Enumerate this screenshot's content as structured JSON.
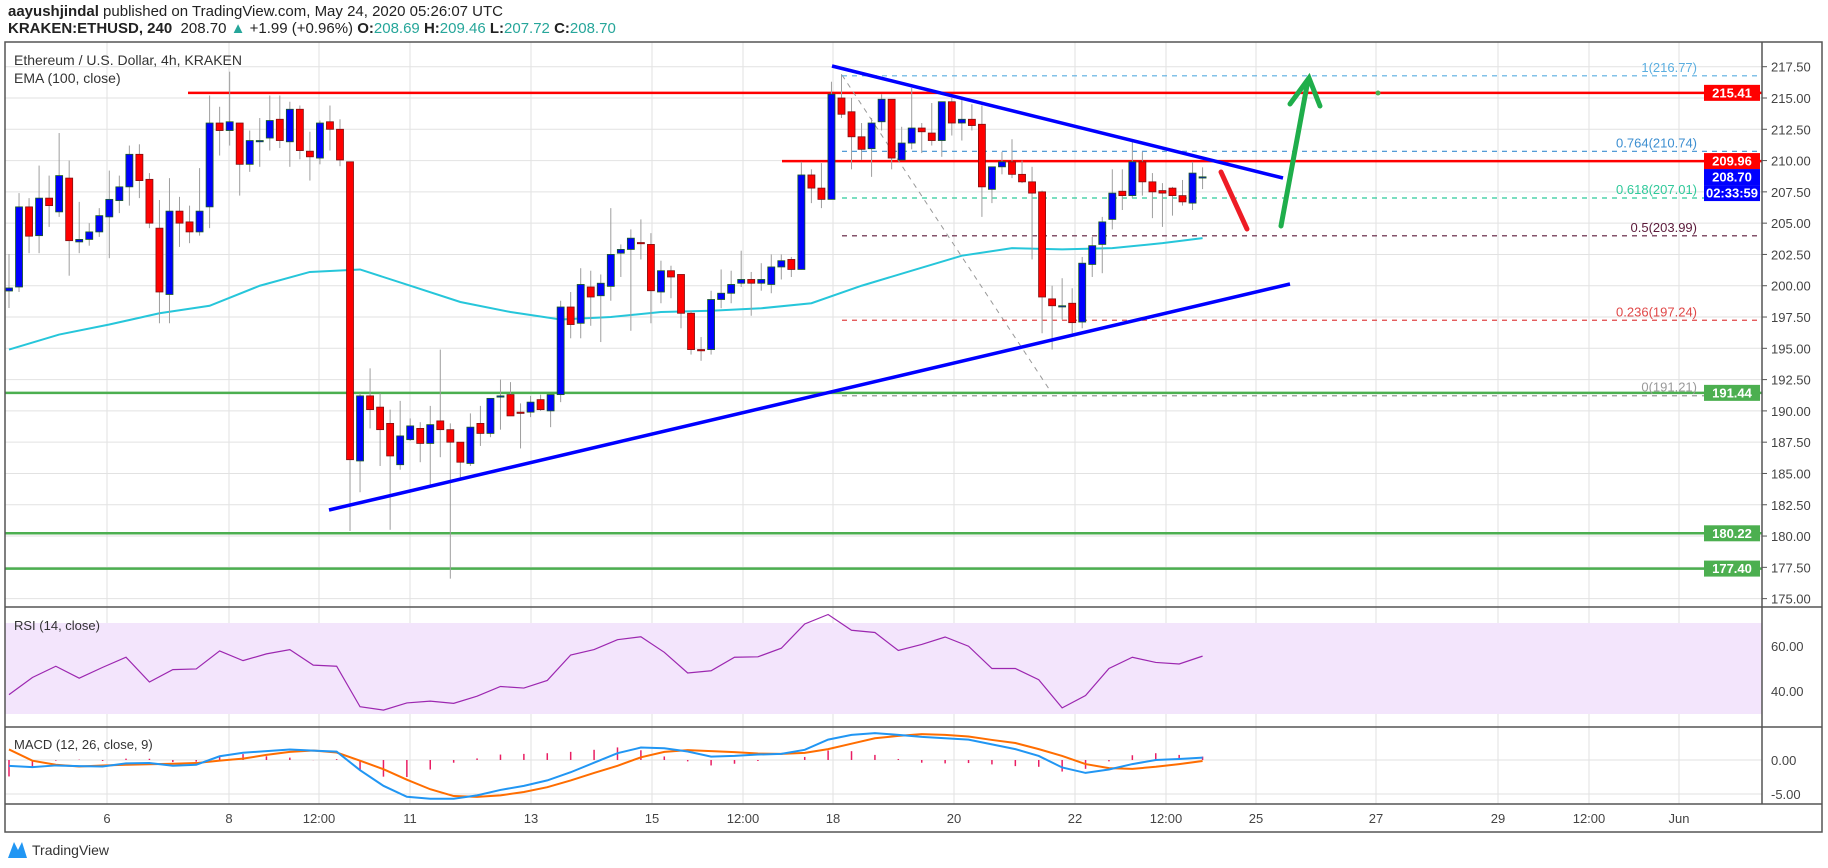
{
  "header": {
    "author": "aayushjindal",
    "published": " published on TradingView.com, May 24, 2020 05:26:07 UTC",
    "symbol": "KRAKEN:ETHUSD, 240",
    "last": "208.70",
    "change": "+1.99 (+0.96%)",
    "o_label": "O:",
    "o": "208.69",
    "h_label": "H:",
    "h": "209.46",
    "l_label": "L:",
    "l": "207.72",
    "c_label": "C:",
    "c": "208.70"
  },
  "legend": {
    "title": "Ethereum / U.S. Dollar, 4h, KRAKEN",
    "ema": "EMA (100, close)",
    "rsi": "RSI (14, close)",
    "macd": "MACD (12, 26, close, 9)"
  },
  "colors": {
    "up": "#0000ff",
    "down": "#ff0000",
    "ema": "#26c6da",
    "rsi": "#9c27b0",
    "macd": "#2196f3",
    "signal": "#ff6d00",
    "hist": "#e91e63",
    "support": "#4caf50",
    "resistance": "#ff0000",
    "trendline": "#0000ff"
  },
  "chart_data": [
    {
      "type": "candlestick",
      "interval": "4h",
      "ylim": [
        175,
        217.5
      ],
      "y_ticks": [
        "217.50",
        "215.00",
        "212.50",
        "210.00",
        "207.50",
        "205.00",
        "202.50",
        "200.00",
        "197.50",
        "195.00",
        "192.50",
        "190.00",
        "187.50",
        "185.00",
        "182.50",
        "180.00",
        "177.50",
        "175.00"
      ],
      "x_ticks": [
        "6",
        "8",
        "12:00",
        "11",
        "13",
        "15",
        "12:00",
        "18",
        "20",
        "22",
        "12:00",
        "25",
        "27",
        "29",
        "12:00",
        "Jun"
      ],
      "ohlc": [
        [
          199.58,
          202.54,
          198.22,
          199.82
        ],
        [
          199.9,
          207.4,
          199.5,
          206.3
        ],
        [
          206.3,
          207.0,
          202.6,
          203.96
        ],
        [
          204.0,
          209.6,
          202.6,
          207.0
        ],
        [
          207.0,
          208.8,
          204.7,
          206.4
        ],
        [
          205.9,
          212.2,
          205.5,
          208.8
        ],
        [
          208.6,
          210.0,
          200.8,
          203.6
        ],
        [
          203.5,
          206.7,
          202.6,
          203.7
        ],
        [
          203.7,
          205.0,
          203.2,
          204.3
        ],
        [
          204.3,
          206.2,
          203.9,
          205.6
        ],
        [
          205.5,
          209.2,
          202.2,
          206.9
        ],
        [
          206.8,
          208.8,
          205.8,
          207.9
        ],
        [
          207.9,
          211.2,
          206.4,
          210.5
        ],
        [
          210.5,
          211.3,
          207.0,
          208.4
        ],
        [
          208.5,
          209.0,
          204.6,
          205.0
        ],
        [
          204.6,
          206.85,
          197.0,
          199.5
        ],
        [
          199.3,
          208.6,
          197.0,
          205.96
        ],
        [
          205.96,
          207.1,
          203.1,
          205.0
        ],
        [
          205.1,
          206.4,
          203.4,
          204.3
        ],
        [
          204.3,
          209.4,
          204.0,
          205.96
        ],
        [
          206.3,
          215.2,
          204.6,
          213.0
        ],
        [
          213.0,
          214.3,
          210.4,
          212.4
        ],
        [
          212.4,
          217.1,
          211.2,
          213.1
        ],
        [
          213.0,
          213.0,
          207.2,
          209.7
        ],
        [
          209.7,
          212.4,
          209.1,
          211.6
        ],
        [
          211.5,
          213.4,
          209.5,
          211.6
        ],
        [
          211.8,
          215.2,
          210.8,
          213.2
        ],
        [
          213.3,
          215.2,
          211.0,
          211.6
        ],
        [
          211.5,
          214.7,
          209.5,
          214.1
        ],
        [
          214.1,
          214.4,
          210.1,
          210.8
        ],
        [
          210.75,
          212.3,
          208.4,
          210.3
        ],
        [
          210.2,
          213.2,
          209.7,
          213.0
        ],
        [
          213.1,
          214.4,
          210.8,
          212.5
        ],
        [
          212.5,
          213.3,
          209.55,
          210.05
        ],
        [
          209.9,
          209.9,
          180.4,
          186.1
        ],
        [
          186.0,
          191.4,
          183.5,
          191.2
        ],
        [
          191.2,
          193.4,
          188.6,
          190.1
        ],
        [
          190.3,
          191.4,
          185.6,
          188.5
        ],
        [
          189.0,
          190.1,
          180.5,
          186.4
        ],
        [
          185.7,
          190.8,
          185.3,
          188.0
        ],
        [
          187.7,
          189.4,
          187.6,
          188.8
        ],
        [
          188.6,
          189.1,
          185.9,
          187.4
        ],
        [
          187.4,
          190.4,
          184.1,
          188.9
        ],
        [
          189.2,
          194.9,
          186.3,
          188.5
        ],
        [
          188.5,
          189.0,
          176.6,
          187.5
        ],
        [
          187.5,
          187.5,
          184.5,
          185.9
        ],
        [
          185.8,
          189.8,
          185.6,
          188.7
        ],
        [
          189.0,
          190.4,
          187.2,
          188.2
        ],
        [
          188.2,
          191.0,
          187.9,
          191.0
        ],
        [
          191.1,
          192.5,
          188.5,
          191.2
        ],
        [
          191.3,
          192.3,
          189.6,
          189.6
        ],
        [
          189.9,
          190.6,
          187.0,
          189.8
        ],
        [
          189.9,
          191.2,
          189.5,
          190.7
        ],
        [
          190.9,
          191.3,
          190.0,
          190.1
        ],
        [
          190.0,
          191.3,
          188.7,
          191.3
        ],
        [
          191.3,
          198.8,
          190.7,
          198.3
        ],
        [
          198.3,
          199.5,
          195.8,
          196.9
        ],
        [
          197.0,
          201.4,
          195.8,
          200.1
        ],
        [
          199.9,
          201.2,
          196.8,
          199.1
        ],
        [
          199.2,
          200.9,
          195.5,
          200.2
        ],
        [
          199.95,
          206.2,
          198.8,
          202.5
        ],
        [
          202.6,
          203.3,
          200.7,
          202.9
        ],
        [
          202.9,
          204.5,
          196.4,
          203.8
        ],
        [
          203.45,
          205.3,
          202.1,
          203.4
        ],
        [
          203.3,
          204.2,
          197.0,
          199.6
        ],
        [
          199.5,
          202.0,
          198.6,
          201.2
        ],
        [
          201.2,
          201.6,
          199.0,
          200.7
        ],
        [
          200.9,
          200.9,
          196.6,
          197.8
        ],
        [
          197.8,
          198.0,
          194.5,
          194.9
        ],
        [
          194.9,
          195.9,
          194.0,
          194.8
        ],
        [
          194.9,
          199.6,
          194.5,
          198.9
        ],
        [
          198.9,
          201.3,
          198.2,
          199.4
        ],
        [
          199.4,
          201.2,
          198.6,
          200.1
        ],
        [
          200.2,
          202.8,
          199.9,
          200.5
        ],
        [
          200.5,
          201.1,
          197.6,
          200.2
        ],
        [
          200.2,
          201.8,
          199.6,
          200.5
        ],
        [
          200.1,
          202.5,
          199.4,
          201.5
        ],
        [
          201.5,
          202.5,
          200.5,
          202.0
        ],
        [
          202.1,
          202.3,
          200.7,
          201.3
        ],
        [
          201.3,
          209.9,
          201.3,
          208.85
        ],
        [
          208.85,
          209.3,
          206.6,
          207.8
        ],
        [
          207.8,
          209.8,
          206.2,
          206.9
        ],
        [
          206.9,
          216.3,
          206.9,
          215.3
        ],
        [
          215.0,
          216.9,
          213.4,
          213.7
        ],
        [
          213.9,
          215.0,
          209.3,
          211.9
        ],
        [
          211.9,
          213.0,
          210.05,
          210.9
        ],
        [
          210.95,
          213.4,
          208.7,
          213.0
        ],
        [
          213.1,
          215.3,
          212.4,
          214.9
        ],
        [
          214.9,
          214.9,
          209.3,
          210.2
        ],
        [
          210.05,
          212.7,
          210.05,
          211.4
        ],
        [
          211.4,
          215.8,
          210.9,
          212.6
        ],
        [
          212.6,
          213.0,
          210.6,
          212.3
        ],
        [
          212.2,
          214.6,
          211.2,
          211.6
        ],
        [
          211.6,
          214.7,
          210.3,
          214.7
        ],
        [
          214.7,
          215.0,
          212.0,
          213.0
        ],
        [
          213.0,
          215.1,
          211.6,
          213.3
        ],
        [
          213.3,
          214.5,
          212.4,
          212.8
        ],
        [
          212.9,
          214.4,
          205.5,
          207.9
        ],
        [
          207.7,
          209.5,
          206.6,
          209.5
        ],
        [
          209.5,
          210.7,
          208.9,
          209.9
        ],
        [
          209.9,
          211.7,
          208.6,
          208.9
        ],
        [
          208.9,
          210.0,
          208.2,
          208.3
        ],
        [
          208.3,
          209.5,
          202.1,
          207.4
        ],
        [
          207.5,
          207.6,
          196.2,
          199.1
        ],
        [
          198.95,
          200.0,
          194.9,
          198.4
        ],
        [
          198.4,
          200.6,
          197.3,
          198.4
        ],
        [
          198.6,
          199.8,
          196.2,
          197.05
        ],
        [
          197.1,
          202.3,
          196.6,
          201.8
        ],
        [
          201.7,
          203.9,
          200.7,
          203.2
        ],
        [
          203.3,
          205.5,
          201.0,
          205.1
        ],
        [
          205.3,
          209.3,
          204.5,
          207.4
        ],
        [
          207.55,
          209.3,
          206.05,
          207.2
        ],
        [
          207.2,
          211.5,
          207.0,
          209.9
        ],
        [
          209.9,
          210.7,
          207.2,
          208.3
        ],
        [
          208.3,
          209.0,
          205.4,
          207.5
        ],
        [
          207.6,
          208.2,
          204.7,
          207.4
        ],
        [
          207.8,
          207.9,
          205.6,
          207.2
        ],
        [
          207.2,
          208.45,
          206.4,
          206.7
        ],
        [
          206.6,
          209.9,
          206.05,
          209.0
        ],
        [
          208.69,
          209.46,
          207.72,
          208.7
        ]
      ],
      "ema100": [
        194.9,
        196.1,
        196.9,
        197.8,
        198.4,
        200.0,
        201.1,
        201.3,
        200.0,
        198.7,
        197.9,
        197.3,
        197.5,
        197.9,
        198.0,
        198.2,
        198.6,
        200.0,
        201.2,
        202.4,
        203.0,
        202.9,
        203.0,
        203.4,
        203.8
      ],
      "levels": [
        {
          "price": 215.41,
          "label": "215.41",
          "kind": "resistance"
        },
        {
          "price": 209.96,
          "label": "209.96",
          "kind": "resistance"
        },
        {
          "price": 191.44,
          "label": "191.44",
          "kind": "support"
        },
        {
          "price": 180.22,
          "label": "180.22",
          "kind": "support"
        },
        {
          "price": 177.4,
          "label": "177.40",
          "kind": "support"
        }
      ],
      "last_price": {
        "price": 208.7,
        "label": "208.70",
        "countdown": "02:33:59"
      },
      "fibonacci": [
        {
          "ratio": "1",
          "price": 216.77,
          "label": "1(216.77)",
          "color": "#5aaee0"
        },
        {
          "ratio": "0.764",
          "price": 210.74,
          "label": "0.764(210.74)",
          "color": "#3d8fd1"
        },
        {
          "ratio": "0.618",
          "price": 207.01,
          "label": "0.618(207.01)",
          "color": "#2fc99a"
        },
        {
          "ratio": "0.5",
          "price": 203.99,
          "label": "0.5(203.99)",
          "color": "#5b1a3a"
        },
        {
          "ratio": "0.236",
          "price": 197.24,
          "label": "0.236(197.24)",
          "color": "#e04848"
        },
        {
          "ratio": "0",
          "price": 191.21,
          "label": "0(191.21)",
          "color": "#999999"
        }
      ]
    },
    {
      "type": "line",
      "title": "RSI (14, close)",
      "ylim": [
        20,
        80
      ],
      "bands": [
        30,
        70
      ],
      "y_ticks": [
        "60.00",
        "40.00"
      ],
      "values": [
        38.4,
        46,
        51,
        45.7,
        50.5,
        55,
        44,
        49.5,
        49.8,
        57.8,
        53.5,
        56.5,
        58.4,
        51.5,
        51,
        33,
        31.5,
        34.7,
        35.5,
        34.5,
        37.7,
        42,
        41.3,
        44.7,
        56,
        58.4,
        62.8,
        64.1,
        57.2,
        48,
        49,
        55,
        55.2,
        59,
        69.8,
        74,
        67,
        66,
        58,
        60.7,
        64,
        59.9,
        50,
        50,
        45,
        32.5,
        38,
        50,
        55,
        52.7,
        52,
        55.5
      ]
    },
    {
      "type": "line",
      "title": "MACD (12, 26, close, 9)",
      "y_ticks": [
        "0.00",
        "-5.00"
      ],
      "macd": [
        -0.87,
        -1.05,
        -0.8,
        -0.9,
        -0.95,
        -0.5,
        -0.45,
        -0.85,
        -0.7,
        0.55,
        1.07,
        1.3,
        1.55,
        1.38,
        1.23,
        -1.5,
        -3.8,
        -5.4,
        -5.7,
        -5.7,
        -5.2,
        -4.4,
        -3.8,
        -3.0,
        -1.8,
        -0.4,
        1.0,
        1.83,
        1.72,
        1.25,
        0.5,
        0.6,
        0.8,
        0.9,
        1.5,
        3.0,
        3.7,
        3.95,
        3.7,
        3.4,
        3.2,
        3.0,
        2.3,
        1.6,
        0.6,
        -1.1,
        -1.9,
        -1.4,
        -0.6,
        0.0,
        0.15,
        0.35
      ],
      "signal": [
        1.55,
        -0.1,
        -0.7,
        -0.95,
        -0.8,
        -0.7,
        -0.63,
        -0.55,
        -0.45,
        -0.1,
        0.2,
        0.75,
        1.2,
        1.4,
        1.1,
        -0.1,
        -1.35,
        -2.9,
        -4.3,
        -5.3,
        -5.43,
        -5.2,
        -4.7,
        -4.0,
        -3.0,
        -1.9,
        -0.85,
        0.4,
        1.2,
        1.45,
        1.3,
        1.15,
        0.95,
        0.9,
        1.05,
        1.6,
        2.4,
        3.2,
        3.55,
        3.8,
        3.7,
        3.45,
        2.95,
        2.5,
        1.6,
        0.6,
        -0.6,
        -1.2,
        -1.3,
        -1.0,
        -0.6,
        -0.15
      ]
    }
  ],
  "footer": {
    "brand": "TradingView"
  }
}
